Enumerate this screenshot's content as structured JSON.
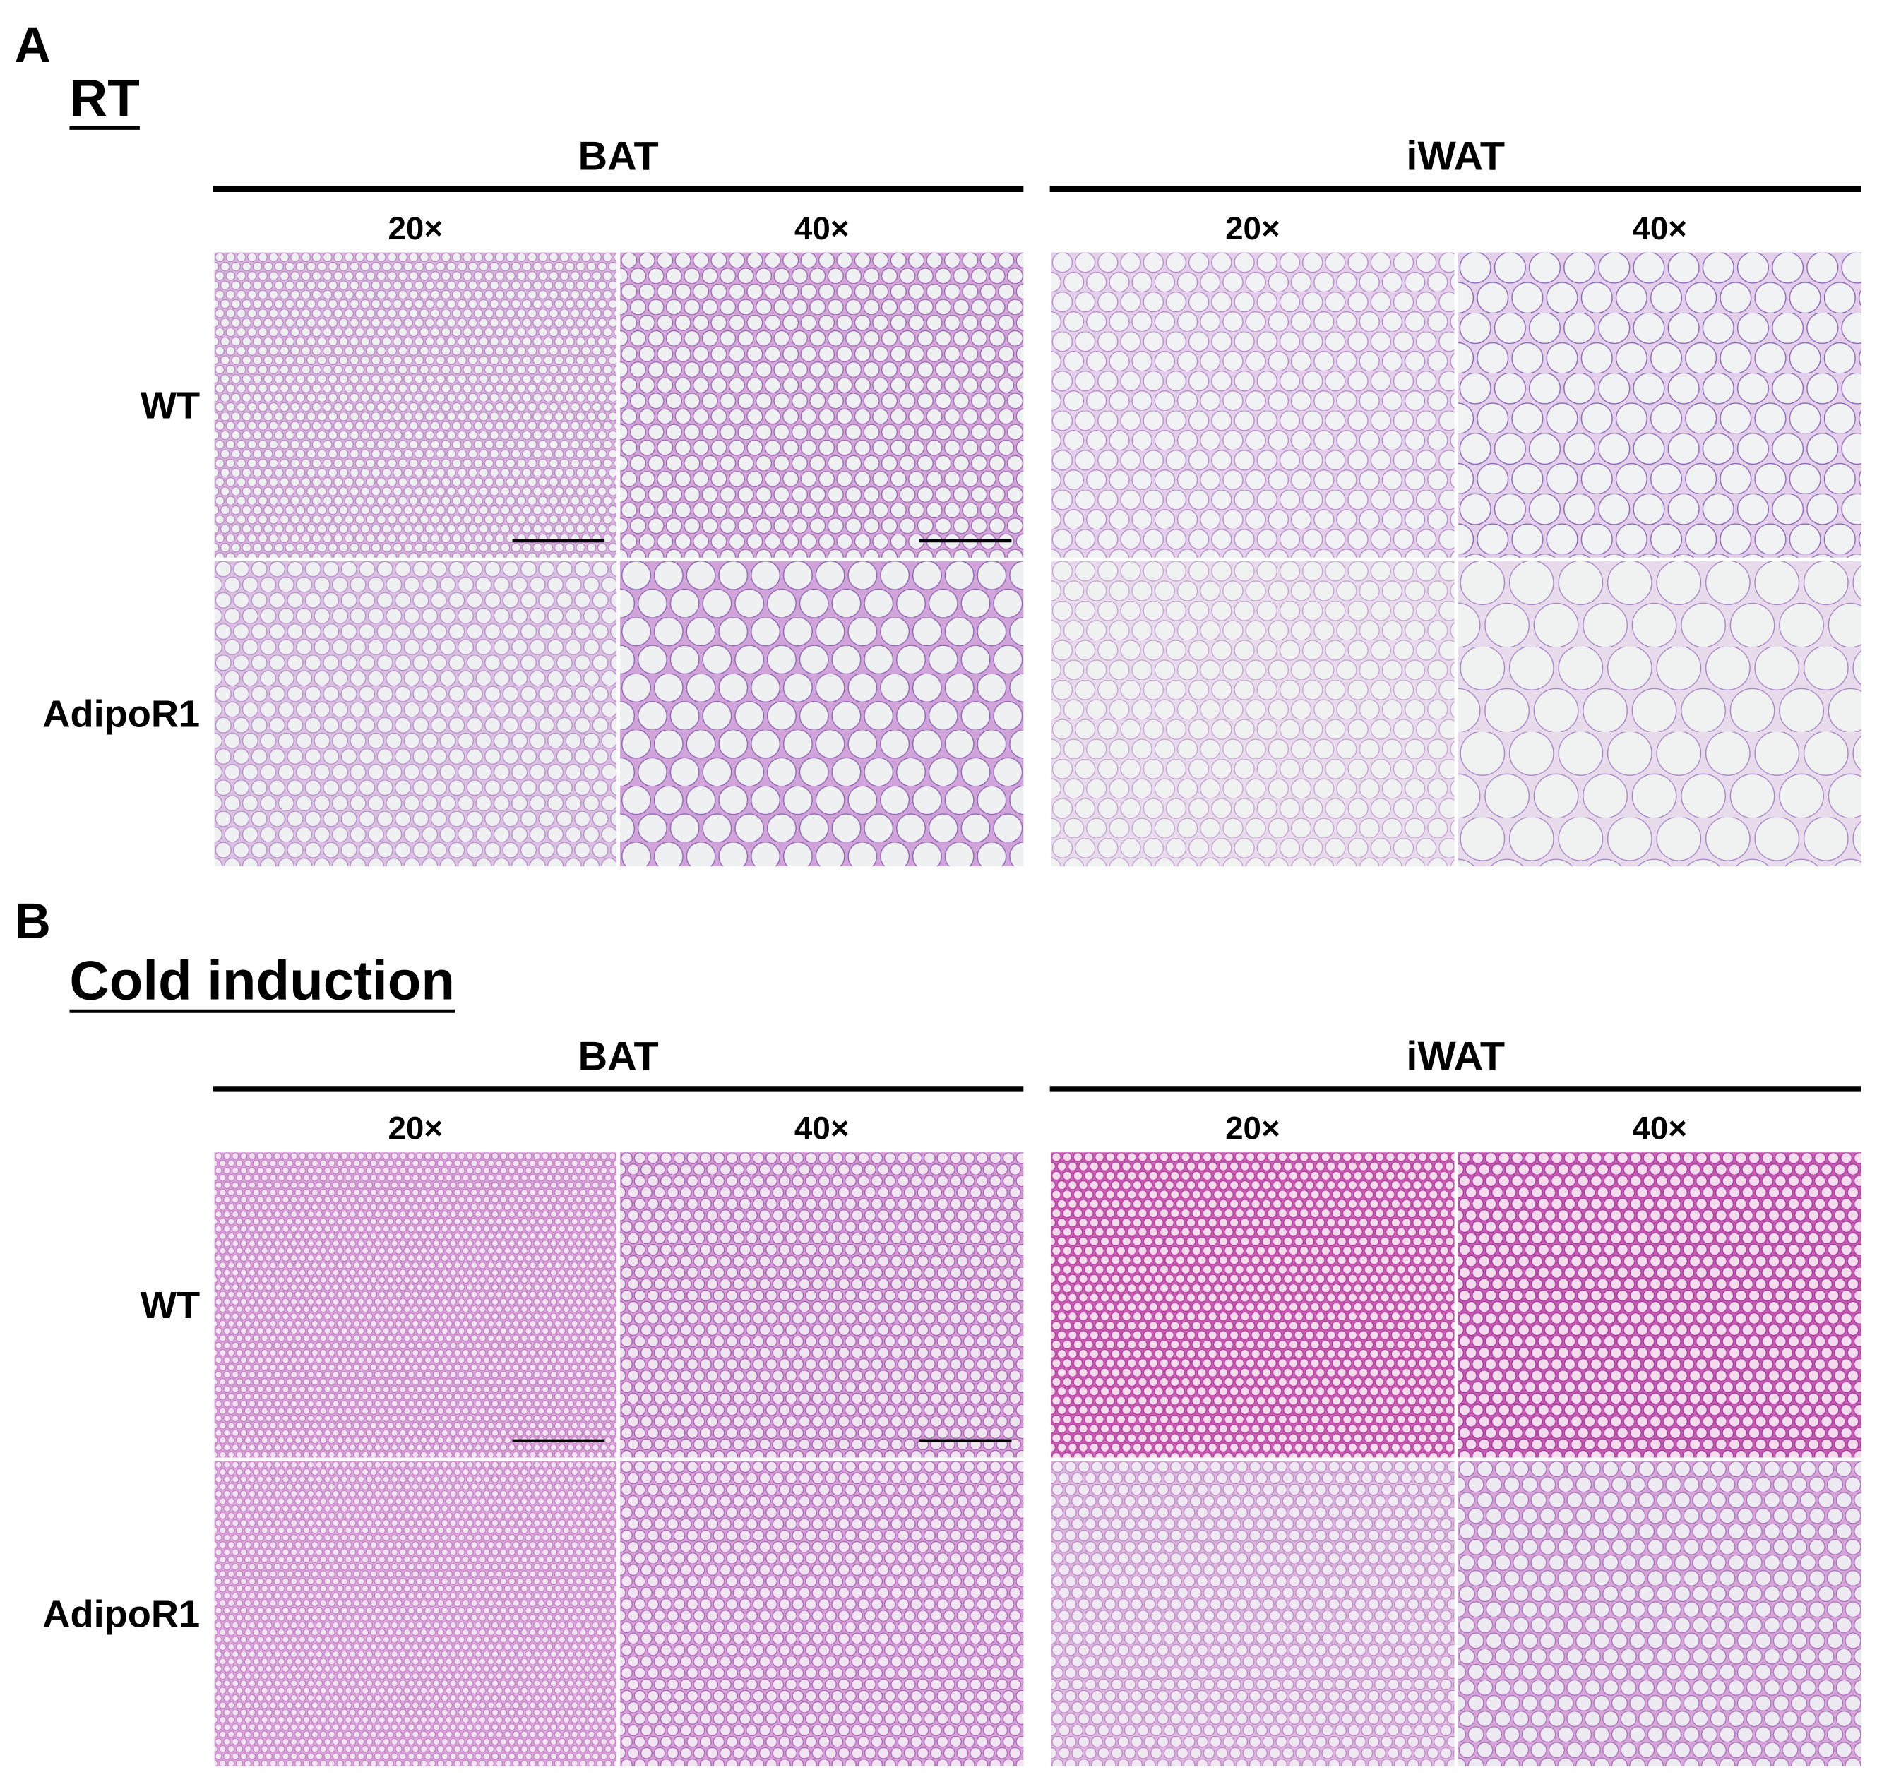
{
  "panels": [
    {
      "letter": "A",
      "condition": "RT",
      "groups": [
        {
          "tissue": "BAT",
          "magnifications": [
            "20×",
            "40×"
          ]
        },
        {
          "tissue": "iWAT",
          "magnifications": [
            "20×",
            "40×"
          ]
        }
      ],
      "rows": [
        "WT",
        "AdipoR1"
      ]
    },
    {
      "letter": "B",
      "condition": "Cold induction",
      "groups": [
        {
          "tissue": "BAT",
          "magnifications": [
            "20×",
            "40×"
          ]
        },
        {
          "tissue": "iWAT",
          "magnifications": [
            "20×",
            "40×"
          ]
        }
      ],
      "rows": [
        "WT",
        "AdipoR1"
      ]
    }
  ]
}
